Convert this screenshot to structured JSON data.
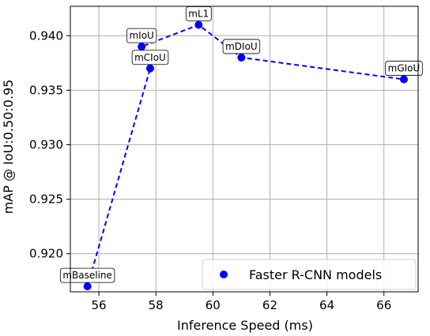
{
  "chart_data": {
    "type": "scatter",
    "xlabel": "Inference Speed (ms)",
    "ylabel": "mAP @ IoU:0.50:0.95",
    "xlim": [
      55.0,
      67.2
    ],
    "ylim": [
      0.9165,
      0.9427
    ],
    "xticks": [
      56,
      58,
      60,
      62,
      64,
      66
    ],
    "yticks": [
      0.92,
      0.925,
      0.93,
      0.935,
      0.94
    ],
    "xtick_labels": [
      "56",
      "58",
      "60",
      "62",
      "64",
      "66"
    ],
    "ytick_labels": [
      "0.920",
      "0.925",
      "0.930",
      "0.935",
      "0.940"
    ],
    "grid": true,
    "legend_position": "lower right",
    "series": [
      {
        "name": "Faster R-CNN models",
        "color": "#0000ff",
        "points": [
          {
            "label": "mBaseline",
            "x": 55.6,
            "y": 0.917
          },
          {
            "label": "mCIoU",
            "x": 57.8,
            "y": 0.937
          },
          {
            "label": "mIoU",
            "x": 57.5,
            "y": 0.939
          },
          {
            "label": "mL1",
            "x": 59.5,
            "y": 0.941
          },
          {
            "label": "mDIoU",
            "x": 61.0,
            "y": 0.938
          },
          {
            "label": "mGIoU",
            "x": 66.7,
            "y": 0.936
          }
        ]
      }
    ],
    "line_path_order": [
      "mBaseline",
      "mCIoU",
      "mIoU",
      "mL1",
      "mDIoU",
      "mGIoU"
    ]
  }
}
